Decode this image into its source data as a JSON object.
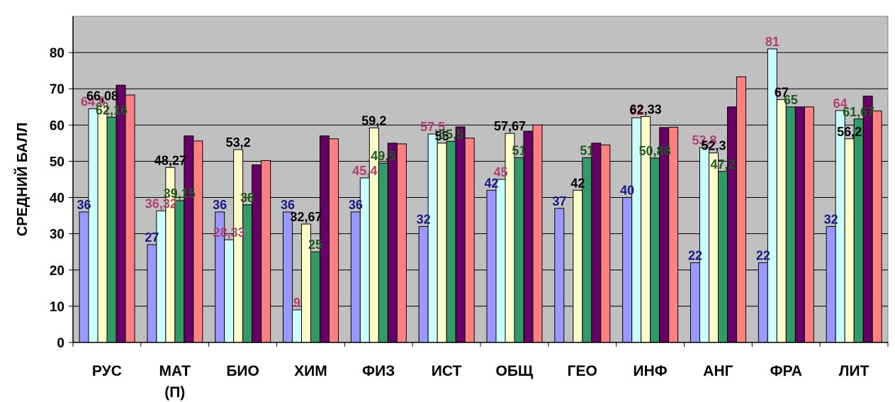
{
  "chart_data": {
    "type": "bar",
    "title": "",
    "xlabel": "",
    "ylabel": "СРЕДНИЙ БАЛЛ",
    "ylim": [
      0,
      90
    ],
    "yticks": [
      0,
      10,
      20,
      30,
      40,
      50,
      60,
      70,
      80
    ],
    "grid": true,
    "plot_background": "#c0c0c0",
    "categories": [
      "РУС",
      "МАТ\n(П)",
      "БИО",
      "ХИМ",
      "ФИЗ",
      "ИСТ",
      "ОБЩ",
      "ГЕО",
      "ИНФ",
      "АНГ",
      "ФРА",
      "ЛИТ"
    ],
    "series": [
      {
        "color": "#9999ff",
        "label_color": "#1a1a8c",
        "values": [
          36,
          27,
          36,
          36,
          36,
          32,
          42,
          37,
          40,
          22,
          22,
          32
        ],
        "labels": [
          "36",
          "27",
          "36",
          "36",
          "36",
          "32",
          "42",
          "37",
          "40",
          "22",
          "22",
          "32"
        ]
      },
      {
        "color": "#ccffff",
        "label_color": "#b04070",
        "values": [
          64.5,
          36.32,
          28.33,
          9,
          45.4,
          57.5,
          45,
          null,
          62,
          53.8,
          81,
          64
        ],
        "labels": [
          "64,5",
          "36,32",
          "28,33",
          "9",
          "45,4",
          "57,5",
          "45",
          "",
          "62",
          "53,8",
          "81",
          "64"
        ]
      },
      {
        "color": "#ffffcc",
        "label_color": "#000000",
        "values": [
          66.08,
          48.27,
          53.2,
          32.67,
          59.2,
          55,
          57.67,
          42,
          62.33,
          52.3,
          67,
          56.2
        ],
        "labels": [
          "66,08",
          "48,27",
          "53,2",
          "32,67",
          "59,2",
          "55",
          "57,67",
          "42",
          "62,33",
          "52,3",
          "67",
          "56,2"
        ]
      },
      {
        "color": "#339966",
        "label_color": "#1f5a1f",
        "values": [
          62.16,
          39.15,
          38,
          25,
          49.5,
          55.5,
          51,
          51,
          50.88,
          47.2,
          65,
          61.67
        ],
        "labels": [
          "62,16",
          "39,15",
          "38",
          "25",
          "49,5",
          "55,5",
          "51",
          "51",
          "50,88",
          "47,2",
          "65",
          "61,67"
        ]
      },
      {
        "color": "#660066",
        "label_color": "#000000",
        "values": [
          71,
          57,
          49,
          57,
          55,
          59.5,
          58.3,
          55,
          59.3,
          65,
          65,
          68
        ],
        "labels": [
          "",
          "",
          "",
          "",
          "",
          "",
          "",
          "",
          "",
          "",
          "",
          ""
        ]
      },
      {
        "color": "#ff8080",
        "label_color": "#000000",
        "values": [
          68.3,
          55.6,
          50.2,
          56.2,
          54.8,
          56.4,
          60,
          54.5,
          59.4,
          73.3,
          65,
          63.9
        ],
        "labels": [
          "",
          "",
          "",
          "",
          "",
          "",
          "",
          "",
          "",
          "",
          "",
          ""
        ]
      }
    ]
  }
}
